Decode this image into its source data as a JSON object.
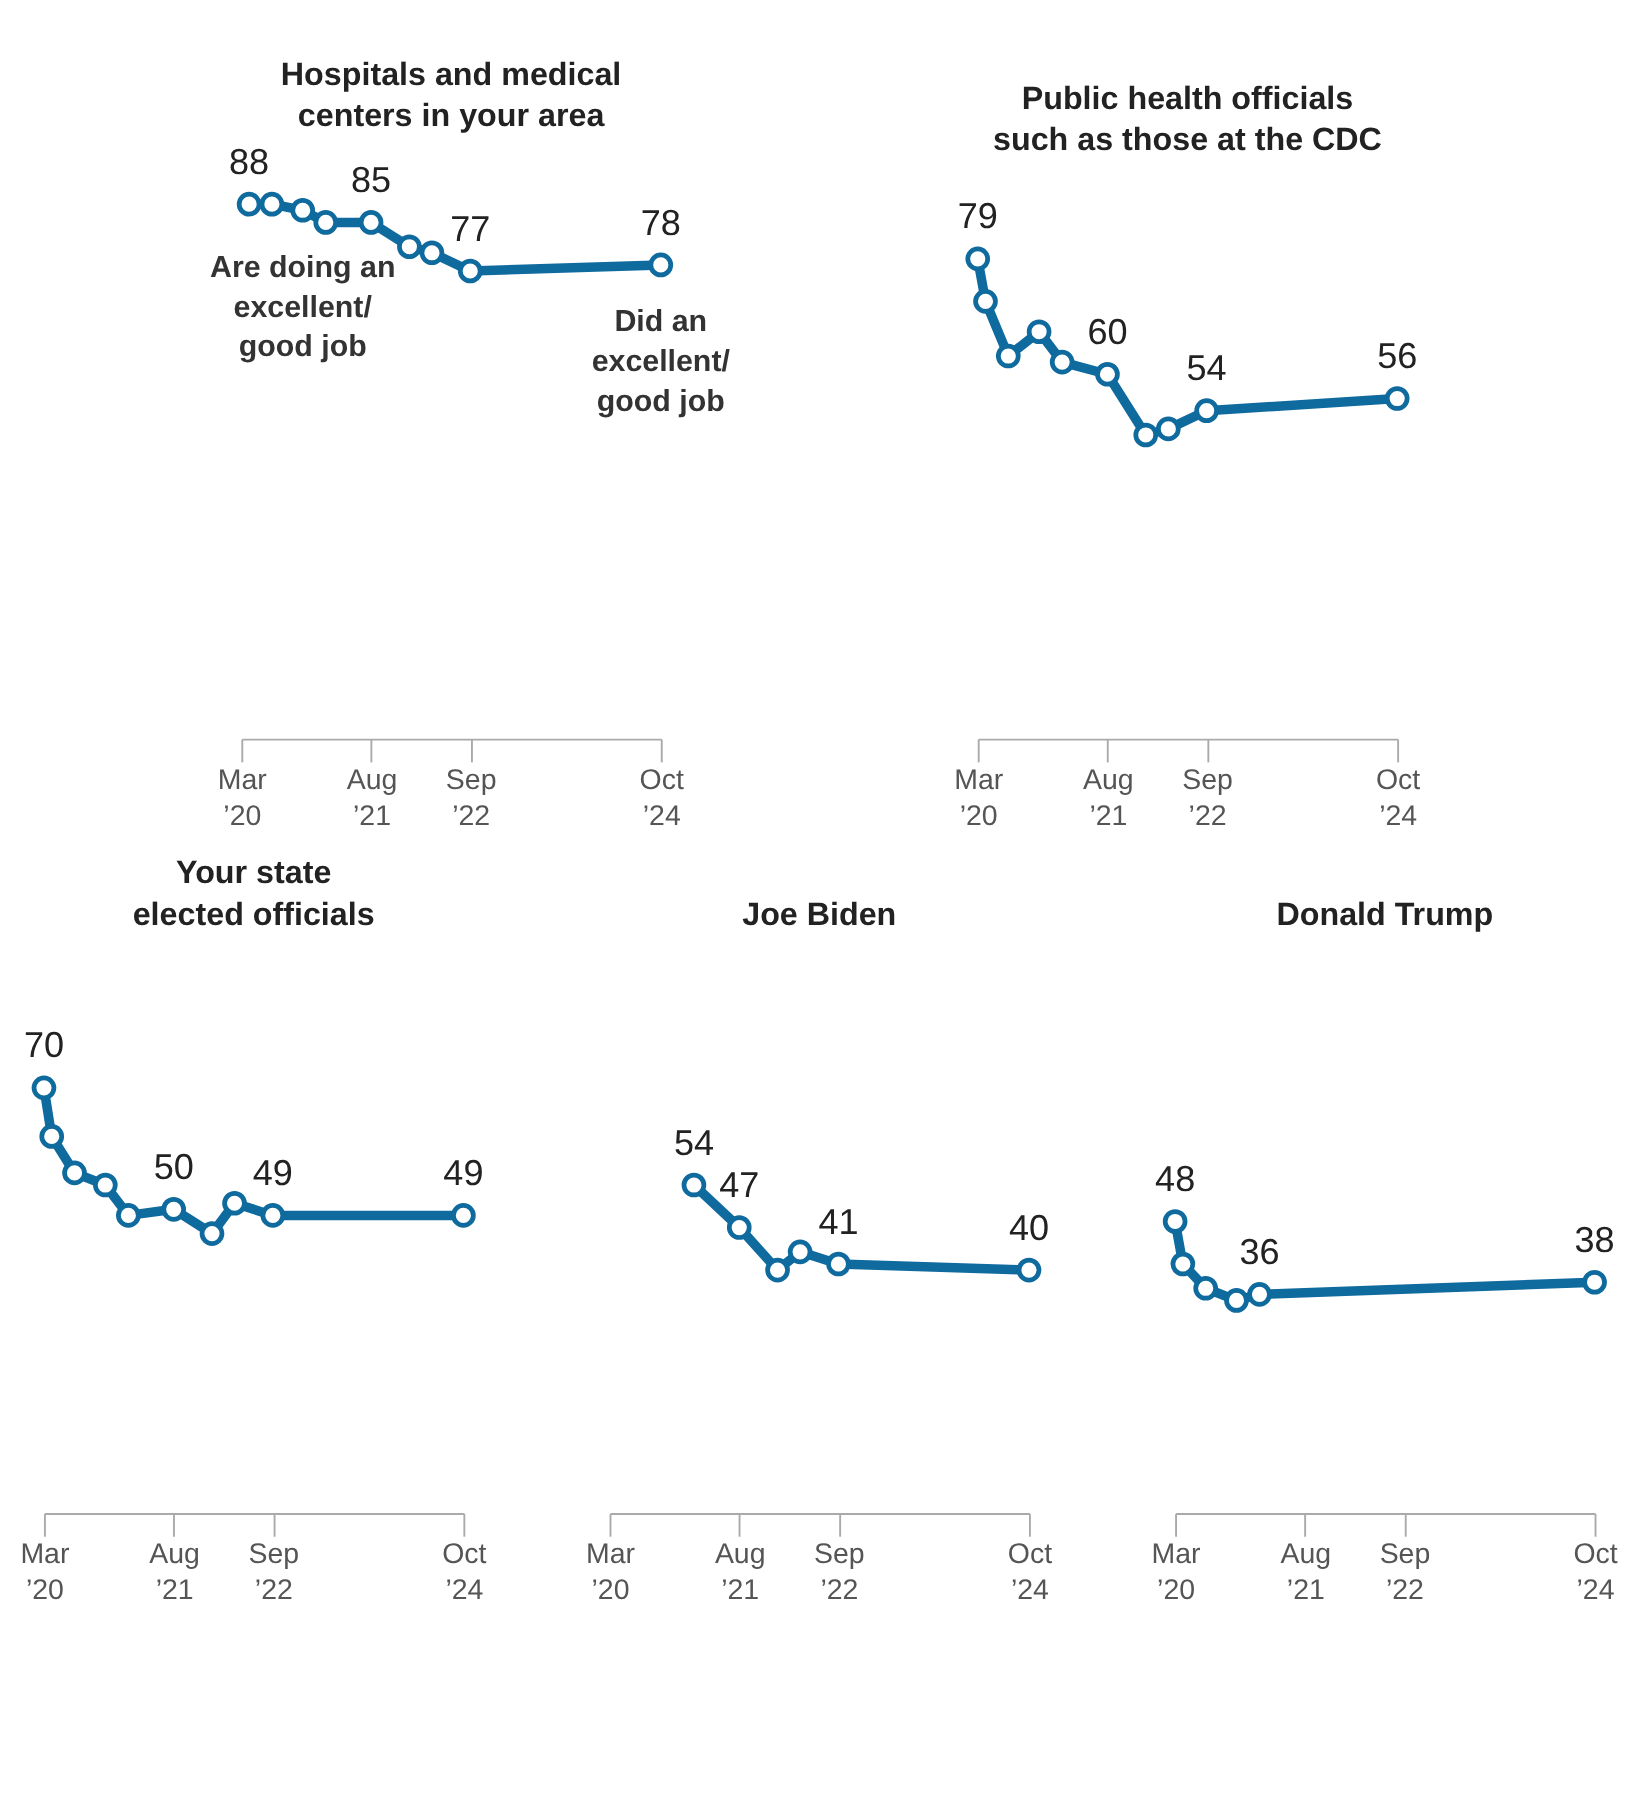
{
  "chart_data": [
    {
      "type": "line",
      "title": "Hospitals and medical\ncenters in your area",
      "x": [
        "2020-04",
        "2020-07",
        "2020-11",
        "2021-02",
        "2021-08",
        "2022-01",
        "2022-04",
        "2022-09",
        "2024-10"
      ],
      "series": [
        {
          "color": "#0f6a9e",
          "values": [
            88,
            88,
            87,
            85,
            85,
            81,
            80,
            77,
            78
          ],
          "value_labels": [
            "88",
            null,
            null,
            null,
            "85",
            null,
            null,
            "77",
            "78"
          ]
        }
      ],
      "annotations": [
        {
          "text": "Are doing an\nexcellent/\ngood job",
          "x": "2020-11",
          "y": 87
        },
        {
          "text": "Did an\nexcellent/\ngood job",
          "x": "2024-10",
          "y": 78
        }
      ],
      "xlim": [
        "2020-03",
        "2024-10"
      ],
      "xticks": [
        {
          "value": "2020-03",
          "label": "Mar\n’20"
        },
        {
          "value": "2021-08",
          "label": "Aug\n’21"
        },
        {
          "value": "2022-09",
          "label": "Sep\n’22"
        },
        {
          "value": "2024-10",
          "label": "Oct\n’24"
        }
      ],
      "tick_labels": "x",
      "grid": false,
      "marker": "circle",
      "line_style": "solid"
    },
    {
      "type": "line",
      "title": "Public health officials\nsuch as those at the CDC",
      "x": [
        "2020-03",
        "2020-04",
        "2020-07",
        "2020-11",
        "2021-02",
        "2021-08",
        "2022-01",
        "2022-04",
        "2022-09",
        "2024-10"
      ],
      "series": [
        {
          "color": "#0f6a9e",
          "values": [
            79,
            72,
            63,
            67,
            62,
            60,
            50,
            51,
            54,
            56
          ],
          "value_labels": [
            "79",
            null,
            null,
            null,
            null,
            "60",
            null,
            null,
            "54",
            "56"
          ]
        }
      ],
      "xlim": [
        "2020-03",
        "2024-10"
      ],
      "xticks": [
        {
          "value": "2020-03",
          "label": "Mar\n’20"
        },
        {
          "value": "2021-08",
          "label": "Aug\n’21"
        },
        {
          "value": "2022-09",
          "label": "Sep\n’22"
        },
        {
          "value": "2024-10",
          "label": "Oct\n’24"
        }
      ],
      "tick_labels": "x",
      "grid": false,
      "marker": "circle",
      "line_style": "solid"
    },
    {
      "type": "line",
      "title": "Your state\nelected officials",
      "x": [
        "2020-03",
        "2020-04",
        "2020-07",
        "2020-11",
        "2021-02",
        "2021-08",
        "2022-01",
        "2022-04",
        "2022-09",
        "2024-10"
      ],
      "series": [
        {
          "color": "#0f6a9e",
          "values": [
            70,
            62,
            56,
            54,
            49,
            50,
            46,
            51,
            49,
            49
          ],
          "value_labels": [
            "70",
            null,
            null,
            null,
            null,
            "50",
            null,
            null,
            "49",
            "49"
          ]
        }
      ],
      "xlim": [
        "2020-03",
        "2024-10"
      ],
      "xticks": [
        {
          "value": "2020-03",
          "label": "Mar\n’20"
        },
        {
          "value": "2021-08",
          "label": "Aug\n’21"
        },
        {
          "value": "2022-09",
          "label": "Sep\n’22"
        },
        {
          "value": "2024-10",
          "label": "Oct\n’24"
        }
      ],
      "tick_labels": "x",
      "grid": false,
      "marker": "circle",
      "line_style": "solid"
    },
    {
      "type": "line",
      "title": "Joe Biden",
      "x": [
        "2021-02",
        "2021-08",
        "2022-01",
        "2022-04",
        "2022-09",
        "2024-10"
      ],
      "series": [
        {
          "color": "#0f6a9e",
          "values": [
            54,
            47,
            40,
            43,
            41,
            40
          ],
          "value_labels": [
            "54",
            "47",
            null,
            null,
            "41",
            "40"
          ]
        }
      ],
      "xlim": [
        "2020-03",
        "2024-10"
      ],
      "xticks": [
        {
          "value": "2020-03",
          "label": "Mar\n’20"
        },
        {
          "value": "2021-08",
          "label": "Aug\n’21"
        },
        {
          "value": "2022-09",
          "label": "Sep\n’22"
        },
        {
          "value": "2024-10",
          "label": "Oct\n’24"
        }
      ],
      "tick_labels": "x",
      "grid": false,
      "marker": "circle",
      "line_style": "solid"
    },
    {
      "type": "line",
      "title": "Donald Trump",
      "x": [
        "2020-03",
        "2020-04",
        "2020-07",
        "2020-11",
        "2021-02",
        "2024-10"
      ],
      "series": [
        {
          "color": "#0f6a9e",
          "values": [
            48,
            41,
            37,
            35,
            36,
            38
          ],
          "value_labels": [
            "48",
            null,
            null,
            null,
            "36",
            "38"
          ]
        }
      ],
      "xlim": [
        "2020-03",
        "2024-10"
      ],
      "xticks": [
        {
          "value": "2020-03",
          "label": "Mar\n’20"
        },
        {
          "value": "2021-08",
          "label": "Aug\n’21"
        },
        {
          "value": "2022-09",
          "label": "Sep\n’22"
        },
        {
          "value": "2024-10",
          "label": "Oct\n’24"
        }
      ],
      "tick_labels": "x",
      "grid": false,
      "marker": "circle",
      "line_style": "solid"
    }
  ]
}
